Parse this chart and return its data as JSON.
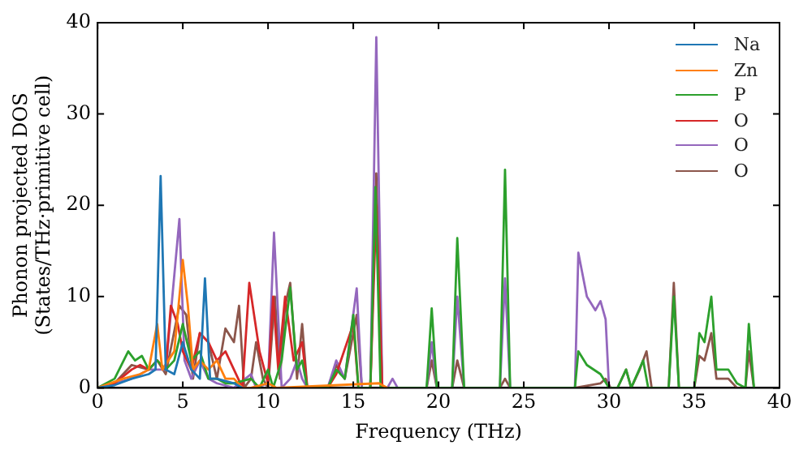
{
  "chart_data": {
    "type": "line",
    "xlabel": "Frequency (THz)",
    "ylabel": "Phonon projected DOS\n(States/THz·primitive cell)",
    "xlim": [
      0,
      40
    ],
    "ylim": [
      0,
      40
    ],
    "xticks": [
      0,
      5,
      10,
      15,
      20,
      25,
      30,
      35,
      40
    ],
    "yticks": [
      0,
      10,
      20,
      30,
      40
    ],
    "grid": false,
    "legend": "top right",
    "marker": "none",
    "line_style": "solid",
    "series": [
      {
        "name": "Na",
        "color": "#1f77b4",
        "x": [
          0,
          1,
          2,
          3,
          3.4,
          3.7,
          4,
          4.5,
          5,
          5.5,
          6,
          6.3,
          6.6,
          7,
          8,
          8.5
        ],
        "values": [
          0,
          0.3,
          1,
          1.5,
          2,
          23.2,
          2,
          1.5,
          5,
          2,
          1,
          12,
          1,
          1,
          0.5,
          0
        ]
      },
      {
        "name": "Zn",
        "color": "#ff7f0e",
        "x": [
          0,
          1.5,
          2.5,
          3,
          3.5,
          3.8,
          4.5,
          5,
          5.3,
          5.6,
          6,
          6.5,
          7,
          7.5,
          8,
          8.5,
          9,
          10,
          10.5,
          16.5,
          17
        ],
        "values": [
          0,
          1,
          1.5,
          2,
          7,
          2,
          4,
          14,
          9,
          2,
          3,
          2,
          3,
          1,
          1,
          0,
          0,
          0.5,
          0,
          0.5,
          0
        ]
      },
      {
        "name": "P",
        "color": "#2ca02c",
        "x": [
          0,
          1,
          1.8,
          2.2,
          2.6,
          3,
          3.5,
          4,
          4.5,
          5,
          5.5,
          6,
          6.5,
          7,
          7.5,
          8,
          9,
          9.5,
          10,
          10.3,
          10.8,
          11.3,
          11.7,
          12,
          12.3,
          13.5,
          14,
          14.5,
          15,
          15.3,
          16,
          16.3,
          16.6,
          19.3,
          19.6,
          19.9,
          20.8,
          21.1,
          21.5,
          23.6,
          23.9,
          24.2,
          28,
          28.2,
          28.7,
          29.5,
          30,
          30.5,
          31,
          31.3,
          32,
          32.3,
          33.5,
          33.8,
          34.1,
          35,
          35.3,
          35.6,
          36,
          36.3,
          37,
          37.5,
          38,
          38.2,
          38.5
        ],
        "values": [
          0,
          1,
          4,
          3,
          3.5,
          2,
          3,
          2,
          3,
          7,
          3,
          4,
          1,
          1,
          0.5,
          0.5,
          1,
          0,
          2,
          0,
          3,
          11,
          2,
          3,
          0,
          0,
          2,
          1,
          8,
          0,
          0,
          22,
          0,
          0,
          8.7,
          0,
          0,
          16.4,
          0,
          0,
          23.9,
          0,
          0,
          4,
          2.5,
          1.5,
          0,
          0,
          2,
          0,
          3,
          0,
          0,
          10,
          0,
          0,
          6,
          5,
          10,
          2,
          2,
          0.5,
          0,
          7,
          0
        ]
      },
      {
        "name": "O",
        "color": "#d62728",
        "x": [
          0,
          1,
          2,
          2.5,
          3,
          3.5,
          4,
          4.3,
          4.7,
          5,
          5.5,
          6,
          6.5,
          7,
          7.5,
          8,
          8.5,
          8.9,
          9.5,
          10,
          10.3,
          10.6,
          11,
          11.5,
          12,
          12.3,
          13.5,
          14,
          15,
          15.3,
          16,
          16.35,
          16.7
        ],
        "values": [
          0,
          0.5,
          2,
          2.5,
          2,
          3,
          2,
          9,
          7,
          4,
          2,
          6,
          5,
          3,
          4,
          2,
          0,
          11.5,
          4,
          0.5,
          10,
          2,
          10,
          3,
          5,
          0,
          0,
          1.5,
          7,
          0,
          0,
          20,
          0
        ]
      },
      {
        "name": "O",
        "color": "#9467bd",
        "x": [
          0,
          2,
          3,
          3.5,
          4,
          4.8,
          5.1,
          5.5,
          6,
          6.5,
          7,
          8,
          9,
          9.3,
          10,
          10.35,
          10.8,
          11.3,
          11.7,
          12,
          12.3,
          13.5,
          14,
          14.5,
          15.2,
          15.5,
          16,
          16.35,
          16.7,
          17,
          17.3,
          17.6,
          19.3,
          19.6,
          19.9,
          20.8,
          21.1,
          21.5,
          23.6,
          23.9,
          24.2,
          28,
          28.2,
          28.7,
          29.2,
          29.5,
          29.8,
          30
        ],
        "values": [
          0,
          1,
          2,
          2,
          2,
          18.5,
          3,
          1,
          3,
          1,
          0.5,
          0,
          1.5,
          0,
          0.5,
          17,
          0,
          1,
          3,
          1,
          0,
          0,
          3,
          1,
          10.9,
          0,
          0,
          38.4,
          0,
          0,
          1,
          0,
          0,
          5,
          0,
          0,
          10,
          0,
          0,
          12,
          0,
          0,
          14.8,
          10,
          8.5,
          9.5,
          7.5,
          0
        ]
      },
      {
        "name": "O",
        "color": "#8c564b",
        "x": [
          0,
          1,
          2,
          3,
          3.5,
          4,
          4.8,
          5.2,
          5.6,
          6,
          6.5,
          7,
          7.5,
          8,
          8.3,
          8.6,
          9,
          9.3,
          9.7,
          10,
          10.4,
          10.7,
          11,
          11.3,
          11.7,
          12,
          12.3,
          13.5,
          14,
          14.5,
          15.2,
          15.5,
          16,
          16.35,
          16.7,
          19.3,
          19.6,
          19.9,
          20.8,
          21.1,
          21.5,
          23.6,
          23.9,
          24.2,
          28,
          29.5,
          29.8,
          30.1,
          30.5,
          31,
          31.3,
          31.8,
          32.2,
          32.5,
          33.5,
          33.8,
          34.1,
          35,
          35.3,
          35.6,
          36,
          36.3,
          37,
          37.5,
          38,
          38.2,
          38.5
        ],
        "values": [
          0,
          0.5,
          2.5,
          2,
          3,
          1.5,
          9,
          8,
          1,
          6,
          5,
          1,
          6.5,
          5,
          9,
          0,
          1,
          5,
          1,
          0,
          10,
          1,
          9,
          11.5,
          1,
          7,
          0,
          0,
          2.5,
          1,
          8,
          0,
          0,
          23.5,
          0,
          0,
          3,
          0,
          0,
          3,
          0,
          0,
          1,
          0,
          0,
          0.5,
          1,
          0,
          0,
          2,
          0,
          2,
          4,
          0,
          0,
          11.5,
          0,
          0,
          3.5,
          3,
          6,
          1,
          1,
          0,
          0,
          4,
          0
        ]
      }
    ]
  }
}
